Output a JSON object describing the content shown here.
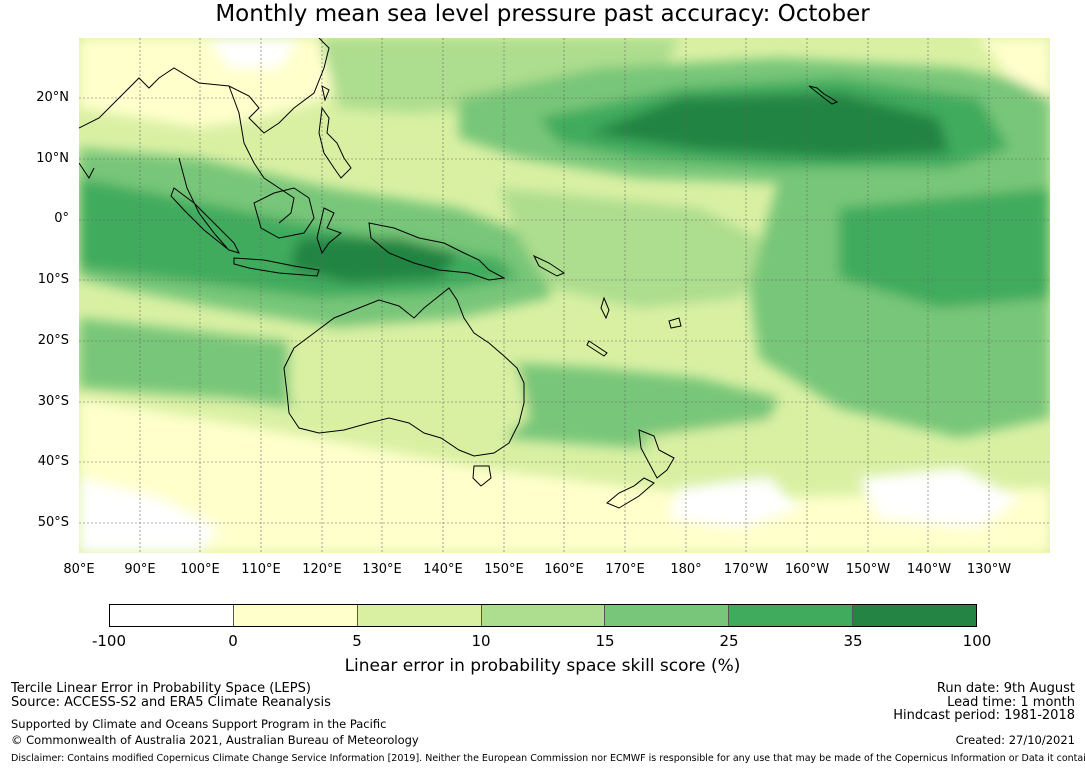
{
  "title": "Monthly mean sea level pressure past accuracy: October",
  "map": {
    "lat_labels": [
      "20°N",
      "10°N",
      "0°",
      "10°S",
      "20°S",
      "30°S",
      "40°S",
      "50°S"
    ],
    "lon_labels": [
      "80°E",
      "90°E",
      "100°E",
      "110°E",
      "120°E",
      "130°E",
      "140°E",
      "150°E",
      "160°E",
      "170°E",
      "180°",
      "170°W",
      "160°W",
      "150°W",
      "140°W",
      "130°W"
    ],
    "lat_range": [
      -55,
      30
    ],
    "lon_range": [
      80,
      240
    ],
    "gridlines": true
  },
  "colorbar": {
    "ticks": [
      "-100",
      "0",
      "5",
      "10",
      "15",
      "25",
      "35",
      "100"
    ],
    "colors": [
      "#ffffff",
      "#ffffcc",
      "#d9f0a3",
      "#addd8e",
      "#78c679",
      "#41ab5d",
      "#238443"
    ],
    "label": "Linear error in probability space skill score (%)"
  },
  "footer": {
    "line1": "Tercile Linear Error in Probability Space (LEPS)",
    "line2": "Source: ACCESS-S2 and ERA5 Climate Reanalysis",
    "line3": "Supported by Climate and Oceans Support Program in the Pacific",
    "line4": "© Commonwealth of Australia 2021, Australian Bureau of Meteorology",
    "run_date": "Run date: 9th August",
    "lead_time": "Lead time: 1 month",
    "hindcast": "Hindcast period: 1981-2018",
    "created": "Created: 27/10/2021",
    "disclaimer": "Disclaimer: Contains modified Copernicus Climate Change Service Information [2019]. Neither the European Commission nor ECMWF is responsible for any use that may be made of the Copernicus Information or Data it contains."
  }
}
